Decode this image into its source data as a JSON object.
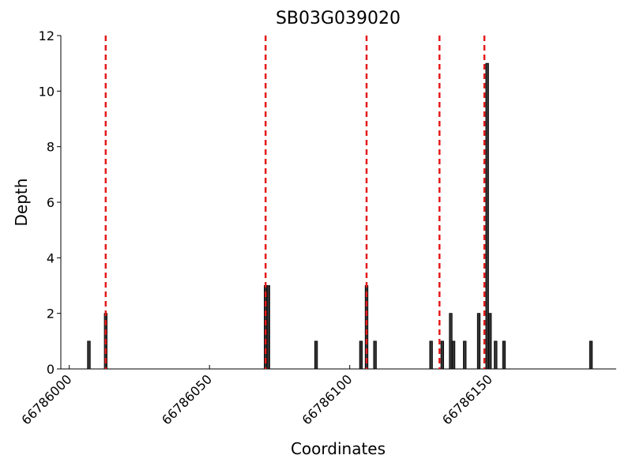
{
  "chart_data": {
    "type": "bar",
    "title": "SB03G039020",
    "xlabel": "Coordinates",
    "ylabel": "Depth",
    "x": [
      66786007,
      66786013,
      66786070,
      66786071,
      66786088,
      66786104,
      66786106,
      66786109,
      66786129,
      66786133,
      66786136,
      66786137,
      66786141,
      66786146,
      66786149,
      66786150,
      66786152,
      66786155,
      66786186
    ],
    "values": [
      1,
      2,
      3,
      3,
      1,
      1,
      3,
      1,
      1,
      1,
      2,
      1,
      1,
      2,
      11,
      2,
      1,
      1,
      1
    ],
    "color": "#333333",
    "vlines": [
      66786013,
      66786070,
      66786106,
      66786132,
      66786148
    ],
    "vline_color": "#e41a1c",
    "xlim": [
      66785997,
      66786195
    ],
    "ylim": [
      0,
      12
    ],
    "xticks": [
      66786000,
      66786050,
      66786100,
      66786150
    ],
    "yticks": [
      0,
      2,
      4,
      6,
      8,
      10,
      12
    ]
  }
}
